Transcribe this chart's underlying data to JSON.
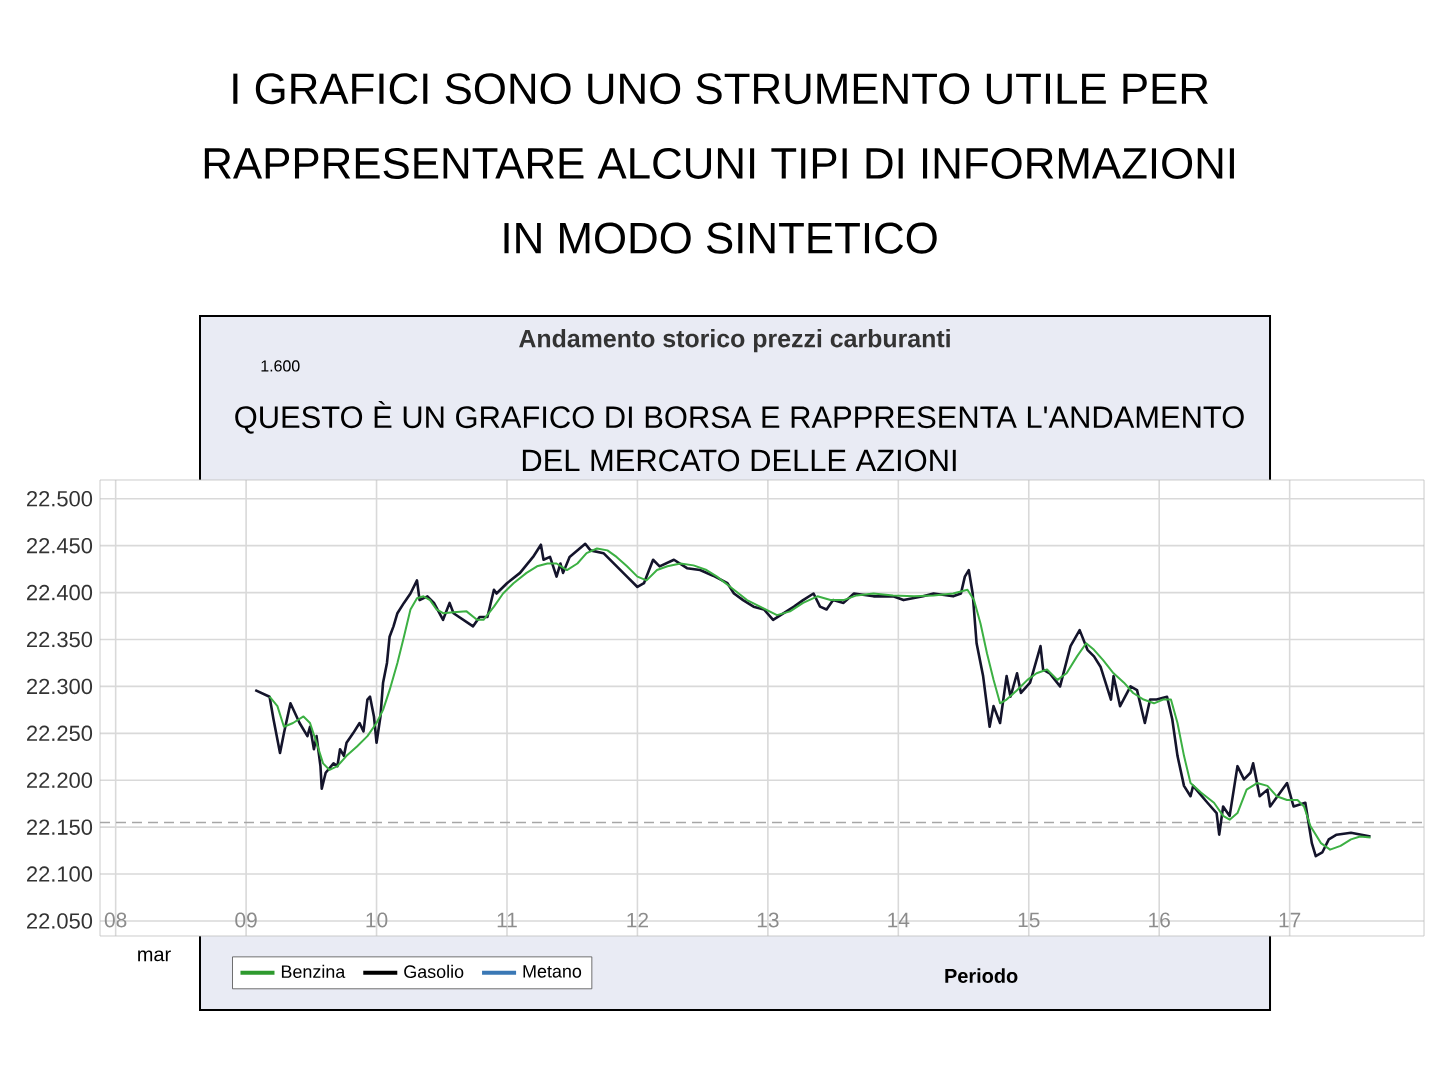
{
  "chart_data": [
    {
      "type": "line",
      "title": "I GRAFICI SONO UNO STRUMENTO UTILE PER RAPPRESENTARE ALCUNI TIPI DI INFORMAZIONI IN MODO SINTETICO",
      "annotations": [
        "QUESTO È UN GRAFICO DI BORSA E RAPPRESENTA L'ANDAMENTO DEL MERCATO DELLE AZIONI"
      ],
      "xlim": [
        7.88,
        18.03
      ],
      "ylim": [
        22.034,
        22.52
      ],
      "xticks": [
        {
          "value": 8,
          "label": "08"
        },
        {
          "value": 9,
          "label": "09"
        },
        10,
        11,
        12,
        13,
        14,
        15,
        16,
        17
      ],
      "yticks": [
        {
          "value": 22.05,
          "label": "22.050"
        },
        {
          "value": 22.1,
          "label": "22.100"
        },
        {
          "value": 22.15,
          "label": "22.150"
        },
        {
          "value": 22.2,
          "label": "22.200"
        },
        {
          "value": 22.25,
          "label": "22.250"
        },
        {
          "value": 22.3,
          "label": "22.300"
        },
        {
          "value": 22.35,
          "label": "22.350"
        },
        {
          "value": 22.4,
          "label": "22.400"
        },
        {
          "value": 22.45,
          "label": "22.450"
        },
        {
          "value": 22.5,
          "label": "22.500"
        }
      ],
      "grid": true,
      "ref_lines": [
        {
          "axis": "y",
          "value": 22.155,
          "color": "#a6a6a6",
          "line_style": "dashed"
        }
      ],
      "series": [
        {
          "color": "#14142b",
          "x": [
            9.07,
            9.18,
            9.21,
            9.26,
            9.29,
            9.34,
            9.41,
            9.47,
            9.49,
            9.52,
            9.54,
            9.57,
            9.58,
            9.61,
            9.67,
            9.7,
            9.72,
            9.75,
            9.77,
            9.82,
            9.87,
            9.9,
            9.93,
            9.95,
            9.98,
            10.0,
            10.03,
            10.05,
            10.08,
            10.1,
            10.13,
            10.16,
            10.21,
            10.26,
            10.31,
            10.33,
            10.39,
            10.44,
            10.51,
            10.56,
            10.59,
            10.74,
            10.79,
            10.85,
            10.9,
            10.92,
            11.0,
            11.1,
            11.2,
            11.26,
            11.28,
            11.33,
            11.38,
            11.41,
            11.43,
            11.48,
            11.6,
            11.64,
            11.74,
            11.92,
            12.0,
            12.05,
            12.12,
            12.17,
            12.28,
            12.38,
            12.48,
            12.58,
            12.69,
            12.74,
            12.81,
            12.89,
            12.97,
            13.04,
            13.12,
            13.2,
            13.27,
            13.35,
            13.4,
            13.45,
            13.5,
            13.58,
            13.66,
            13.81,
            13.96,
            14.04,
            14.19,
            14.27,
            14.42,
            14.48,
            14.51,
            14.54,
            14.57,
            14.6,
            14.65,
            14.7,
            14.73,
            14.78,
            14.83,
            14.86,
            14.91,
            14.94,
            15.01,
            15.09,
            15.11,
            15.16,
            15.24,
            15.32,
            15.39,
            15.45,
            15.5,
            15.55,
            15.63,
            15.65,
            15.7,
            15.78,
            15.83,
            15.89,
            15.93,
            15.98,
            16.06,
            16.1,
            16.14,
            16.19,
            16.24,
            16.26,
            16.37,
            16.44,
            16.46,
            16.49,
            16.54,
            16.6,
            16.65,
            16.7,
            16.72,
            16.77,
            16.83,
            16.85,
            16.98,
            17.03,
            17.12,
            17.17,
            17.2,
            17.25,
            17.3,
            17.36,
            17.47,
            17.62
          ],
          "values": [
            22.296,
            22.289,
            22.265,
            22.229,
            22.25,
            22.282,
            22.261,
            22.247,
            22.257,
            22.233,
            22.247,
            22.215,
            22.191,
            22.208,
            22.218,
            22.215,
            22.233,
            22.226,
            22.24,
            22.25,
            22.261,
            22.252,
            22.286,
            22.289,
            22.268,
            22.24,
            22.268,
            22.304,
            22.325,
            22.353,
            22.364,
            22.378,
            22.389,
            22.399,
            22.413,
            22.392,
            22.396,
            22.389,
            22.371,
            22.389,
            22.378,
            22.364,
            22.374,
            22.374,
            22.403,
            22.399,
            22.41,
            22.421,
            22.438,
            22.451,
            22.435,
            22.438,
            22.417,
            22.431,
            22.421,
            22.438,
            22.452,
            22.445,
            22.442,
            22.417,
            22.406,
            22.41,
            22.435,
            22.428,
            22.435,
            22.426,
            22.424,
            22.418,
            22.41,
            22.399,
            22.392,
            22.385,
            22.382,
            22.371,
            22.378,
            22.385,
            22.392,
            22.399,
            22.385,
            22.382,
            22.392,
            22.389,
            22.399,
            22.396,
            22.396,
            22.392,
            22.396,
            22.399,
            22.396,
            22.399,
            22.417,
            22.424,
            22.399,
            22.346,
            22.311,
            22.257,
            22.279,
            22.261,
            22.311,
            22.289,
            22.314,
            22.293,
            22.304,
            22.343,
            22.318,
            22.314,
            22.3,
            22.343,
            22.36,
            22.339,
            22.332,
            22.321,
            22.286,
            22.311,
            22.279,
            22.3,
            22.296,
            22.261,
            22.286,
            22.286,
            22.289,
            22.265,
            22.226,
            22.194,
            22.183,
            22.194,
            22.176,
            22.165,
            22.142,
            22.172,
            22.162,
            22.215,
            22.201,
            22.208,
            22.218,
            22.183,
            22.19,
            22.172,
            22.197,
            22.172,
            22.176,
            22.133,
            22.119,
            22.123,
            22.137,
            22.142,
            22.144,
            22.14
          ]
        },
        {
          "color": "#3cb043",
          "x": [
            9.18,
            9.24,
            9.29,
            9.36,
            9.44,
            9.49,
            9.54,
            9.59,
            9.64,
            9.7,
            9.77,
            9.85,
            9.93,
            10.0,
            10.05,
            10.1,
            10.16,
            10.21,
            10.26,
            10.31,
            10.36,
            10.41,
            10.46,
            10.51,
            10.59,
            10.69,
            10.77,
            10.82,
            10.9,
            10.97,
            11.05,
            11.15,
            11.23,
            11.31,
            11.38,
            11.46,
            11.54,
            11.61,
            11.69,
            11.77,
            11.84,
            11.92,
            12.0,
            12.07,
            12.15,
            12.23,
            12.33,
            12.43,
            12.53,
            12.61,
            12.74,
            12.84,
            12.94,
            13.07,
            13.17,
            13.27,
            13.38,
            13.48,
            13.58,
            13.68,
            13.81,
            13.96,
            14.12,
            14.27,
            14.42,
            14.53,
            14.58,
            14.63,
            14.68,
            14.73,
            14.78,
            14.83,
            14.91,
            14.99,
            15.06,
            15.14,
            15.22,
            15.29,
            15.37,
            15.44,
            15.5,
            15.57,
            15.65,
            15.73,
            15.8,
            15.88,
            15.96,
            16.03,
            16.09,
            16.14,
            16.19,
            16.24,
            16.32,
            16.42,
            16.49,
            16.54,
            16.6,
            16.67,
            16.75,
            16.83,
            16.9,
            16.98,
            17.06,
            17.11,
            17.16,
            17.24,
            17.31,
            17.39,
            17.47,
            17.54,
            17.62
          ],
          "values": [
            22.289,
            22.279,
            22.257,
            22.261,
            22.268,
            22.261,
            22.24,
            22.218,
            22.211,
            22.215,
            22.226,
            22.236,
            22.247,
            22.261,
            22.275,
            22.296,
            22.325,
            22.353,
            22.382,
            22.394,
            22.396,
            22.392,
            22.382,
            22.378,
            22.379,
            22.38,
            22.371,
            22.371,
            22.385,
            22.399,
            22.41,
            22.421,
            22.428,
            22.431,
            22.431,
            22.424,
            22.431,
            22.442,
            22.447,
            22.445,
            22.438,
            22.428,
            22.417,
            22.413,
            22.424,
            22.428,
            22.431,
            22.429,
            22.424,
            22.417,
            22.403,
            22.392,
            22.385,
            22.376,
            22.38,
            22.389,
            22.396,
            22.392,
            22.392,
            22.397,
            22.399,
            22.397,
            22.396,
            22.397,
            22.399,
            22.403,
            22.392,
            22.367,
            22.335,
            22.307,
            22.282,
            22.286,
            22.296,
            22.307,
            22.314,
            22.318,
            22.307,
            22.314,
            22.332,
            22.346,
            22.339,
            22.328,
            22.314,
            22.304,
            22.293,
            22.286,
            22.282,
            22.286,
            22.286,
            22.261,
            22.226,
            22.197,
            22.187,
            22.176,
            22.162,
            22.158,
            22.165,
            22.19,
            22.197,
            22.194,
            22.183,
            22.179,
            22.179,
            22.172,
            22.151,
            22.133,
            22.126,
            22.13,
            22.137,
            22.14,
            22.139
          ]
        }
      ]
    },
    {
      "type": "other",
      "title": "Andamento storico prezzi carburanti",
      "xlabel": "Periodo",
      "legend": "bottom left",
      "series": [
        {
          "name": "Benzina",
          "color": "#2e9a2e"
        },
        {
          "name": "Gasolio",
          "color": "#000000"
        },
        {
          "name": "Metano",
          "color": "#3a78b5"
        }
      ],
      "annotations": [
        "1.600",
        "mar"
      ]
    }
  ]
}
